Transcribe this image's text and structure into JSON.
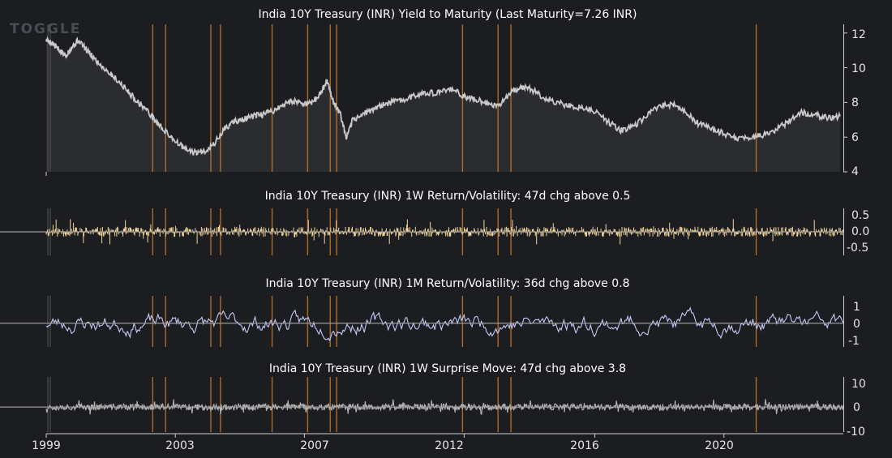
{
  "brand": {
    "logo_text": "TOGGLE"
  },
  "colors": {
    "background": "#1b1d21",
    "event_line": "#c8792a",
    "yield_line": "#c9c9c9",
    "yield_fill": "#2a2c30",
    "return_1w": "#f3d59a",
    "return_1m": "#c7caf7",
    "surprise": "#b8b8b8",
    "axis_text": "#e6e6e6",
    "zero_line": "#9a9a9a"
  },
  "x_axis": {
    "ticks": [
      "1999",
      "2003",
      "2007",
      "2012",
      "2016",
      "2020"
    ],
    "range": [
      1999,
      2023.7
    ]
  },
  "event_dates": [
    2002.3,
    2002.7,
    2004.1,
    2004.4,
    2006.0,
    2007.1,
    2007.8,
    2008.0,
    2011.9,
    2013.0,
    2013.4,
    2021.0
  ],
  "chart_data": [
    {
      "type": "area",
      "title": "India 10Y Treasury (INR) Yield to Maturity (Last Maturity=7.26 INR)",
      "ylim": [
        4,
        12.5
      ],
      "yticks": [
        "12",
        "10",
        "8",
        "6",
        "4"
      ],
      "x": [
        1999.0,
        1999.2,
        1999.4,
        1999.6,
        1999.8,
        2000.0,
        2000.3,
        2000.6,
        2000.9,
        2001.2,
        2001.5,
        2001.8,
        2002.1,
        2002.4,
        2002.7,
        2003.0,
        2003.3,
        2003.6,
        2003.9,
        2004.2,
        2004.5,
        2004.8,
        2005.1,
        2005.4,
        2005.7,
        2006.0,
        2006.3,
        2006.6,
        2006.9,
        2007.2,
        2007.5,
        2007.7,
        2007.9,
        2008.1,
        2008.3,
        2008.5,
        2008.8,
        2009.1,
        2009.5,
        2009.9,
        2010.3,
        2010.7,
        2011.1,
        2011.5,
        2011.9,
        2012.2,
        2012.6,
        2013.0,
        2013.4,
        2013.7,
        2014.0,
        2014.4,
        2014.8,
        2015.2,
        2015.6,
        2016.0,
        2016.4,
        2016.8,
        2017.2,
        2017.6,
        2018.0,
        2018.4,
        2018.8,
        2019.2,
        2019.6,
        2020.0,
        2020.4,
        2020.8,
        2021.2,
        2021.6,
        2022.0,
        2022.4,
        2022.8,
        2023.2,
        2023.6
      ],
      "y": [
        11.6,
        11.4,
        11.0,
        10.7,
        11.2,
        11.6,
        10.9,
        10.3,
        9.8,
        9.3,
        8.7,
        8.1,
        7.6,
        6.9,
        6.3,
        5.8,
        5.3,
        5.1,
        5.2,
        5.6,
        6.4,
        6.9,
        7.0,
        7.2,
        7.3,
        7.5,
        7.8,
        8.1,
        8.0,
        7.9,
        8.5,
        9.3,
        8.0,
        7.4,
        5.9,
        7.0,
        7.3,
        7.6,
        7.9,
        8.1,
        8.3,
        8.6,
        8.5,
        8.8,
        8.4,
        8.2,
        8.0,
        7.8,
        8.6,
        8.9,
        8.8,
        8.3,
        8.0,
        7.8,
        7.7,
        7.5,
        6.9,
        6.4,
        6.6,
        7.2,
        7.8,
        7.9,
        7.4,
        6.8,
        6.5,
        6.2,
        5.9,
        6.0,
        6.1,
        6.4,
        6.9,
        7.4,
        7.3,
        7.1,
        7.2
      ]
    },
    {
      "type": "bar",
      "title": "India 10Y Treasury (INR) 1W Return/Volatility: 47d chg above 0.5",
      "ylim": [
        -0.7,
        0.7
      ],
      "yticks": [
        "0.5",
        "0.0",
        "-0.5"
      ],
      "series": [
        {
          "count": 1290,
          "seed": 11,
          "amplitude": 0.3,
          "kind": "spiky"
        }
      ]
    },
    {
      "type": "line",
      "title": "India 10Y Treasury (INR) 1M Return/Volatility: 36d chg above 0.8",
      "ylim": [
        -1.3,
        1.5
      ],
      "yticks": [
        "1",
        "0",
        "-1"
      ],
      "series": [
        {
          "count": 600,
          "seed": 23,
          "amplitude": 0.55,
          "kind": "smooth"
        }
      ]
    },
    {
      "type": "line",
      "title": "India 10Y Treasury (INR) 1W Surprise Move: 47d chg above 3.8",
      "ylim": [
        -10,
        12
      ],
      "yticks": [
        "10",
        "0",
        "-10"
      ],
      "series": [
        {
          "count": 1290,
          "seed": 37,
          "amplitude": 2.5,
          "kind": "spiky"
        }
      ]
    }
  ]
}
